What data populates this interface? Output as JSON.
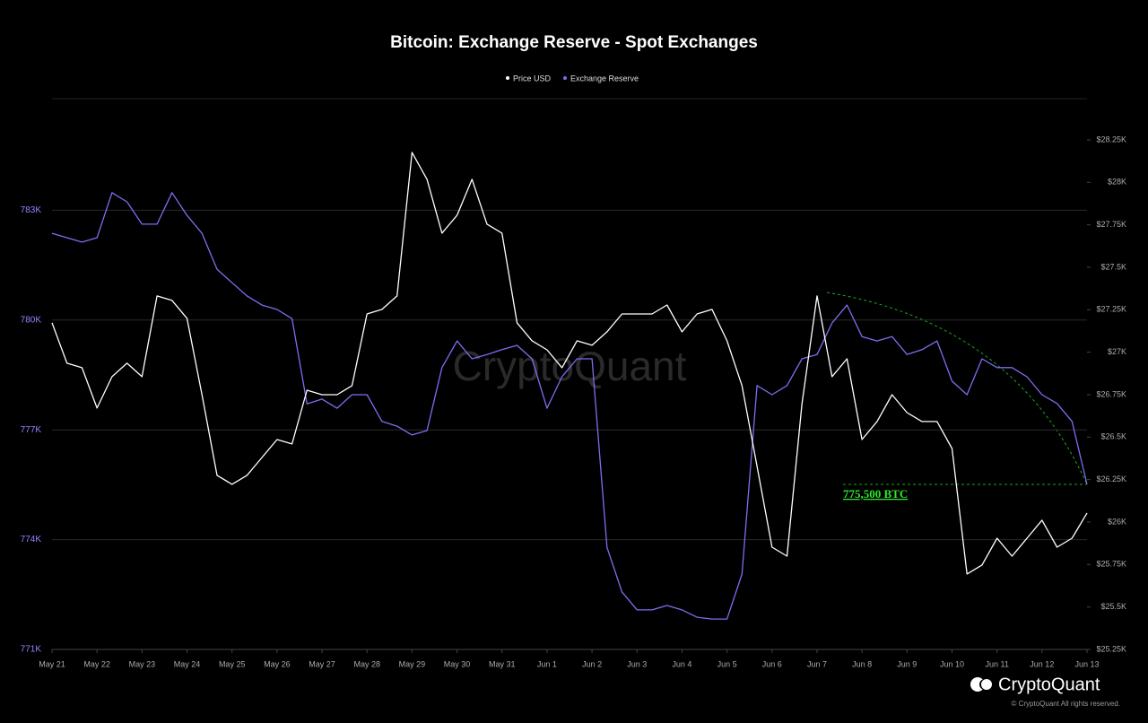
{
  "chart_data": {
    "type": "line",
    "title": "Bitcoin: Exchange Reserve - Spot Exchanges",
    "watermark": "CryptoQuant",
    "brand": "CryptoQuant",
    "copyright": "© CryptoQuant All rights reserved.",
    "annotations": [
      "775,500 BTC"
    ],
    "categories": [
      "May 21",
      null,
      null,
      "May 22",
      null,
      null,
      "May 23",
      null,
      null,
      "May 24",
      null,
      null,
      "May 25",
      null,
      null,
      "May 26",
      null,
      null,
      "May 27",
      null,
      null,
      "May 28",
      null,
      null,
      "May 29",
      null,
      null,
      "May 30",
      null,
      null,
      "May 31",
      null,
      null,
      "Jun 1",
      null,
      null,
      "Jun 2",
      null,
      null,
      "Jun 3",
      null,
      null,
      "Jun 4",
      null,
      null,
      "Jun 5",
      null,
      null,
      "Jun 6",
      null,
      null,
      "Jun 7",
      null,
      null,
      "Jun 8",
      null,
      null,
      "Jun 9",
      null,
      null,
      "Jun 10",
      null,
      null,
      "Jun 11",
      null,
      null,
      "Jun 12",
      null,
      null,
      "Jun 13"
    ],
    "series": [
      {
        "name": "Price USD",
        "color": "#ffffff",
        "axis": "y2",
        "values": [
          27173,
          26935,
          26909,
          26671,
          26856,
          26935,
          26856,
          27331,
          27305,
          27199,
          26750,
          26275,
          26222,
          26275,
          26380,
          26486,
          26460,
          26776,
          26750,
          26750,
          26803,
          27225,
          27252,
          27331,
          28176,
          28018,
          27701,
          27806,
          28018,
          27754,
          27701,
          27173,
          27067,
          27014,
          26909,
          27067,
          27041,
          27120,
          27225,
          27225,
          27225,
          27278,
          27120,
          27225,
          27252,
          27067,
          26803,
          26328,
          25852,
          25799,
          26697,
          27331,
          26856,
          26961,
          26486,
          26592,
          26750,
          26644,
          26592,
          26592,
          26433,
          25694,
          25747,
          25905,
          25799,
          25905,
          26011,
          25852,
          25905,
          26053
        ]
      },
      {
        "name": "Exchange Reserve",
        "color": "#7b6ff0",
        "axis": "y",
        "values": [
          782370,
          782250,
          782130,
          782250,
          783480,
          783230,
          782620,
          782620,
          783480,
          782860,
          782370,
          781390,
          781020,
          780660,
          780410,
          780290,
          780040,
          777710,
          777840,
          777590,
          777960,
          777960,
          777230,
          777100,
          776860,
          776980,
          778700,
          779430,
          778940,
          779060,
          779190,
          779310,
          778940,
          777590,
          778450,
          778940,
          778940,
          773790,
          772570,
          772080,
          772080,
          772200,
          772080,
          771880,
          771830,
          771830,
          773060,
          778210,
          777960,
          778210,
          778940,
          779060,
          779920,
          780410,
          779550,
          779430,
          779550,
          779060,
          779190,
          779430,
          778330,
          777960,
          778940,
          778700,
          778700,
          778450,
          777960,
          777720,
          777230,
          775510
        ]
      }
    ],
    "ylim": [
      771000,
      786000
    ],
    "yticks": [
      {
        "value": 771000,
        "label": "771K"
      },
      {
        "value": 774000,
        "label": "774K"
      },
      {
        "value": 777000,
        "label": "777K"
      },
      {
        "value": 780000,
        "label": "780K"
      },
      {
        "value": 783000,
        "label": "783K"
      }
    ],
    "y2lim": [
      25250,
      28482
    ],
    "y2ticks": [
      {
        "value": 25250,
        "label": "$25.25K"
      },
      {
        "value": 25500,
        "label": "$25.5K"
      },
      {
        "value": 25750,
        "label": "$25.75K"
      },
      {
        "value": 26000,
        "label": "$26K"
      },
      {
        "value": 26250,
        "label": "$26.25K"
      },
      {
        "value": 26500,
        "label": "$26.5K"
      },
      {
        "value": 26750,
        "label": "$26.75K"
      },
      {
        "value": 27000,
        "label": "$27K"
      },
      {
        "value": 27250,
        "label": "$27.25K"
      },
      {
        "value": 27500,
        "label": "$27.5K"
      },
      {
        "value": 27750,
        "label": "$27.75K"
      },
      {
        "value": 28000,
        "label": "$28K"
      },
      {
        "value": 28250,
        "label": "$28.25K"
      }
    ],
    "grid": true
  }
}
